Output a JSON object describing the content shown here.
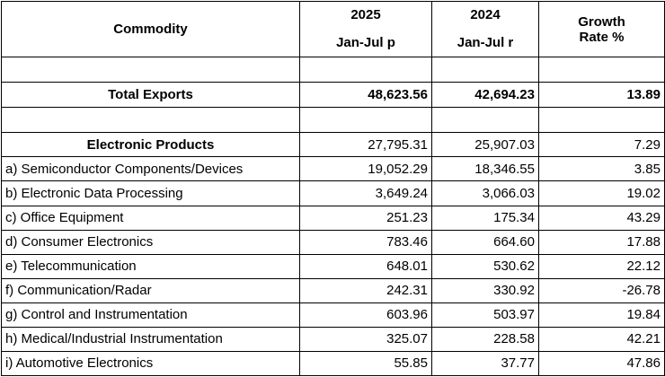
{
  "header": {
    "commodity": "Commodity",
    "year_2025": "2025",
    "year_2024": "2024",
    "period_2025": "Jan-Jul p",
    "period_2024": "Jan-Jul r",
    "growth_line1": "Growth",
    "growth_line2": "Rate %"
  },
  "total": {
    "label": "Total Exports",
    "v2025": "48,623.56",
    "v2024": "42,694.23",
    "growth": "13.89"
  },
  "section": {
    "label": "Electronic Products",
    "v2025": "27,795.31",
    "v2024": "25,907.03",
    "growth": "7.29"
  },
  "rows": [
    {
      "label": "a) Semiconductor Components/Devices",
      "v2025": "19,052.29",
      "v2024": "18,346.55",
      "growth": "3.85"
    },
    {
      "label": "b) Electronic Data Processing",
      "v2025": "3,649.24",
      "v2024": "3,066.03",
      "growth": "19.02"
    },
    {
      "label": "c) Office Equipment",
      "v2025": "251.23",
      "v2024": "175.34",
      "growth": "43.29"
    },
    {
      "label": "d) Consumer Electronics",
      "v2025": "783.46",
      "v2024": "664.60",
      "growth": "17.88"
    },
    {
      "label": "e) Telecommunication",
      "v2025": "648.01",
      "v2024": "530.62",
      "growth": "22.12"
    },
    {
      "label": "f) Communication/Radar",
      "v2025": "242.31",
      "v2024": "330.92",
      "growth": "-26.78"
    },
    {
      "label": "g) Control and Instrumentation",
      "v2025": "603.96",
      "v2024": "503.97",
      "growth": "19.84"
    },
    {
      "label": "h) Medical/Industrial Instrumentation",
      "v2025": "325.07",
      "v2024": "228.58",
      "growth": "42.21"
    },
    {
      "label": "i) Automotive Electronics",
      "v2025": "55.85",
      "v2024": "37.77",
      "growth": "47.86"
    }
  ]
}
